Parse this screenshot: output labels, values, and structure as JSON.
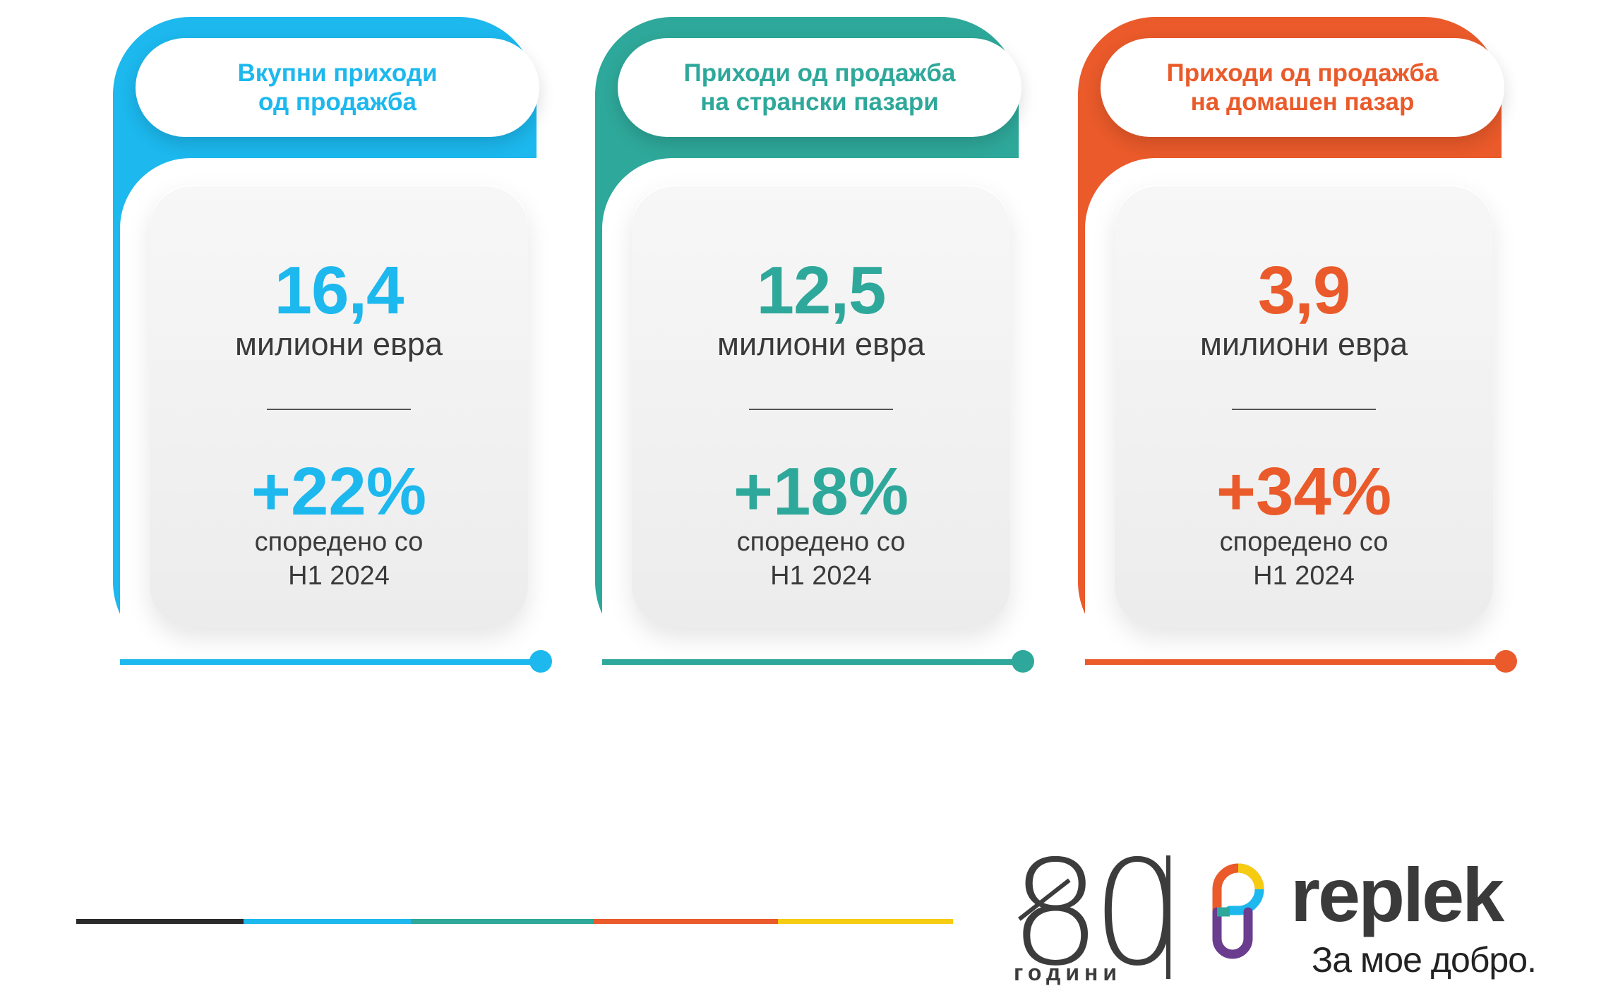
{
  "colors": {
    "blue": "#1cb8ee",
    "teal": "#2ea89a",
    "orange": "#ea5a2a",
    "yellow": "#f5cc12",
    "dark": "#2a2a2a"
  },
  "cards": [
    {
      "title_line1": "Вкупни приходи",
      "title_line2": "од продажба",
      "value": "16,4",
      "unit": "милиони евра",
      "change": "+22%",
      "compare_line1": "споредено со",
      "compare_line2": "H1 2024",
      "color": "#1cb8ee"
    },
    {
      "title_line1": "Приходи од продажба",
      "title_line2": "на странски пазари",
      "value": "12,5",
      "unit": "милиони евра",
      "change": "+18%",
      "compare_line1": "споредено со",
      "compare_line2": "H1 2024",
      "color": "#2ea89a"
    },
    {
      "title_line1": "Приходи од продажба",
      "title_line2": "на домашен пазар",
      "value": "3,9",
      "unit": "милиони евра",
      "change": "+34%",
      "compare_line1": "споредено со",
      "compare_line2": "H1 2024",
      "color": "#ea5a2a"
    }
  ],
  "footer": {
    "anniversary_number": "80",
    "anniversary_label": "години",
    "brand_name": "replek",
    "tagline": "За мое добро."
  }
}
